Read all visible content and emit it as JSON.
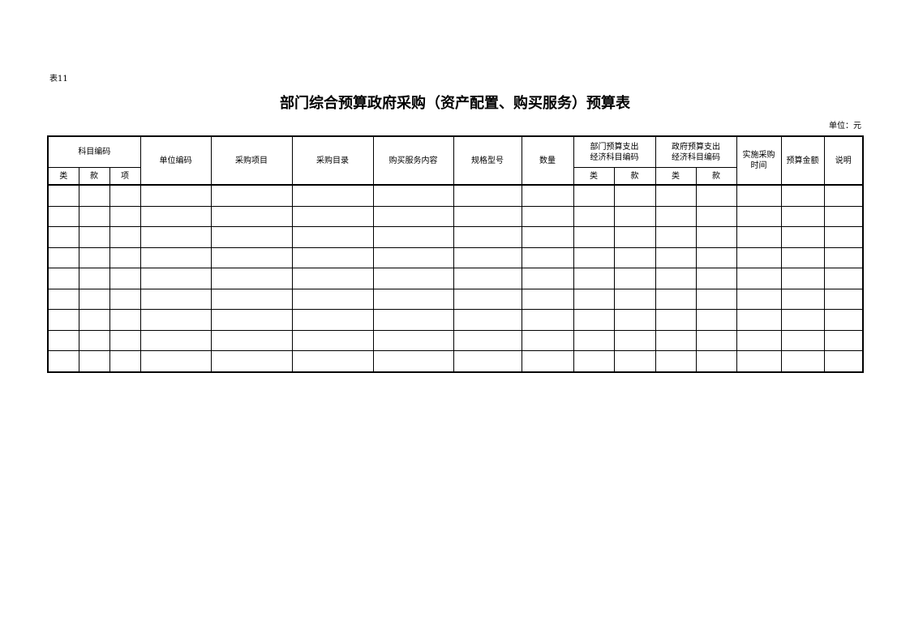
{
  "table_no": "表11",
  "title": "部门综合预算政府采购（资产配置、购买服务）预算表",
  "unit": "单位：元",
  "headers": {
    "subject_code": "科目编码",
    "lei": "类",
    "kuan": "款",
    "xiang": "项",
    "unit_code": "单位编码",
    "item": "采购项目",
    "catalog": "采购目录",
    "service": "购买服务内容",
    "spec": "规格型号",
    "qty": "数量",
    "dept_econ_1": "部门预算支出",
    "dept_econ_2": "经济科目编码",
    "gov_econ_1": "政府预算支出",
    "gov_econ_2": "经济科目编码",
    "time_1": "实施采购",
    "time_2": "时间",
    "amount": "预算金额",
    "note": "说明"
  },
  "row_count": 9
}
